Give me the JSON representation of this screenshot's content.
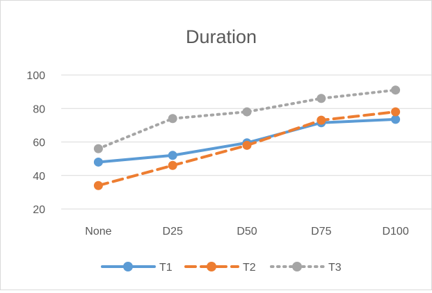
{
  "chart_data": {
    "type": "line",
    "title": "Duration",
    "xlabel": "",
    "ylabel": "",
    "categories": [
      "None",
      "D25",
      "D50",
      "D75",
      "D100"
    ],
    "ylim": [
      20,
      100
    ],
    "yticks": [
      20,
      40,
      60,
      80,
      100
    ],
    "grid": true,
    "legend": "bottom",
    "series": [
      {
        "name": "T1",
        "values": [
          48,
          52,
          59.5,
          71.5,
          73.5
        ],
        "color": "#5b9bd5",
        "line": "solid",
        "marker": "circle"
      },
      {
        "name": "T2",
        "values": [
          34,
          46,
          58,
          73,
          78
        ],
        "color": "#ed7d31",
        "line": "dashed",
        "marker": "circle"
      },
      {
        "name": "T3",
        "values": [
          56,
          74,
          78,
          86,
          91
        ],
        "color": "#a5a5a5",
        "line": "dotted",
        "marker": "circle"
      }
    ]
  }
}
